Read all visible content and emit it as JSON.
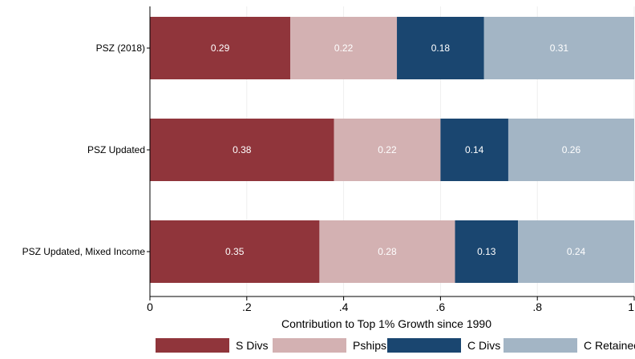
{
  "chart_data": {
    "type": "bar",
    "orientation": "horizontal",
    "stacked": true,
    "categories": [
      "PSZ (2018)",
      "PSZ Updated",
      "PSZ Updated, Mixed Income"
    ],
    "series": [
      {
        "name": "S Divs",
        "values": [
          0.29,
          0.38,
          0.35
        ],
        "labels": [
          "0.29",
          "0.38",
          "0.35"
        ],
        "color": "#90353b"
      },
      {
        "name": "Pships",
        "values": [
          0.22,
          0.22,
          0.28
        ],
        "labels": [
          "0.22",
          "0.22",
          "0.28"
        ],
        "color": "#d3b1b2"
      },
      {
        "name": "C Divs",
        "values": [
          0.18,
          0.14,
          0.13
        ],
        "labels": [
          "0.18",
          "0.14",
          "0.13"
        ],
        "color": "#1a4670"
      },
      {
        "name": "C Retained",
        "values": [
          0.31,
          0.26,
          0.24
        ],
        "labels": [
          "0.31",
          "0.26",
          "0.24"
        ],
        "color": "#a3b5c5"
      }
    ],
    "xlabel": "Contribution to Top 1% Growth since 1990",
    "ylabel": "",
    "xlim": [
      0,
      1
    ],
    "xticks": [
      0,
      0.2,
      0.4,
      0.6,
      0.8,
      1
    ],
    "xtick_labels": [
      "0",
      ".2",
      ".4",
      ".6",
      ".8",
      "1"
    ],
    "grid": true,
    "legend": "bottom",
    "label_color": "#ffffff"
  }
}
